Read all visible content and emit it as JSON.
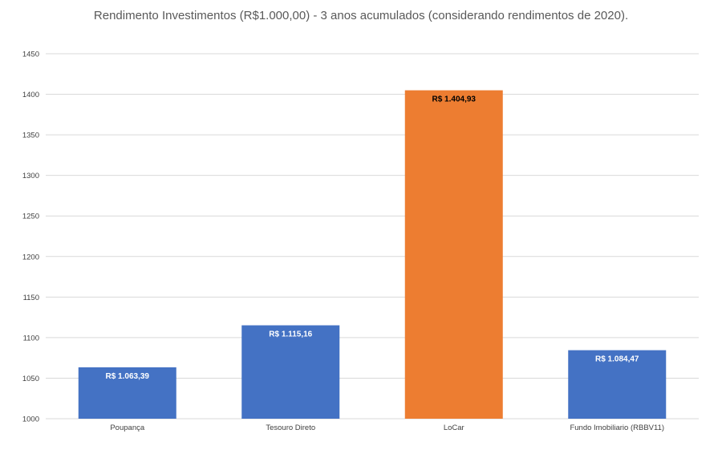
{
  "chart_data": {
    "type": "bar",
    "title": "Rendimento Investimentos (R$1.000,00) - 3 anos acumulados (considerando rendimentos de 2020).",
    "xlabel": "",
    "ylabel": "",
    "ylim": [
      1000,
      1450
    ],
    "yticks": [
      1000,
      1050,
      1100,
      1150,
      1200,
      1250,
      1300,
      1350,
      1400,
      1450
    ],
    "grid": true,
    "categories": [
      "Poupança",
      "Tesouro Direto",
      "LoCar",
      "Fundo Imobiliario (RBBV11)"
    ],
    "values": [
      1063.39,
      1115.16,
      1404.93,
      1084.47
    ],
    "data_labels": [
      "R$ 1.063,39",
      "R$ 1.115,16",
      "R$ 1.404,93",
      "R$ 1.084,47"
    ],
    "colors": [
      "#4472C4",
      "#4472C4",
      "#ED7D31",
      "#4472C4"
    ],
    "label_colors": [
      "#ffffff",
      "#ffffff",
      "#000000",
      "#ffffff"
    ]
  }
}
